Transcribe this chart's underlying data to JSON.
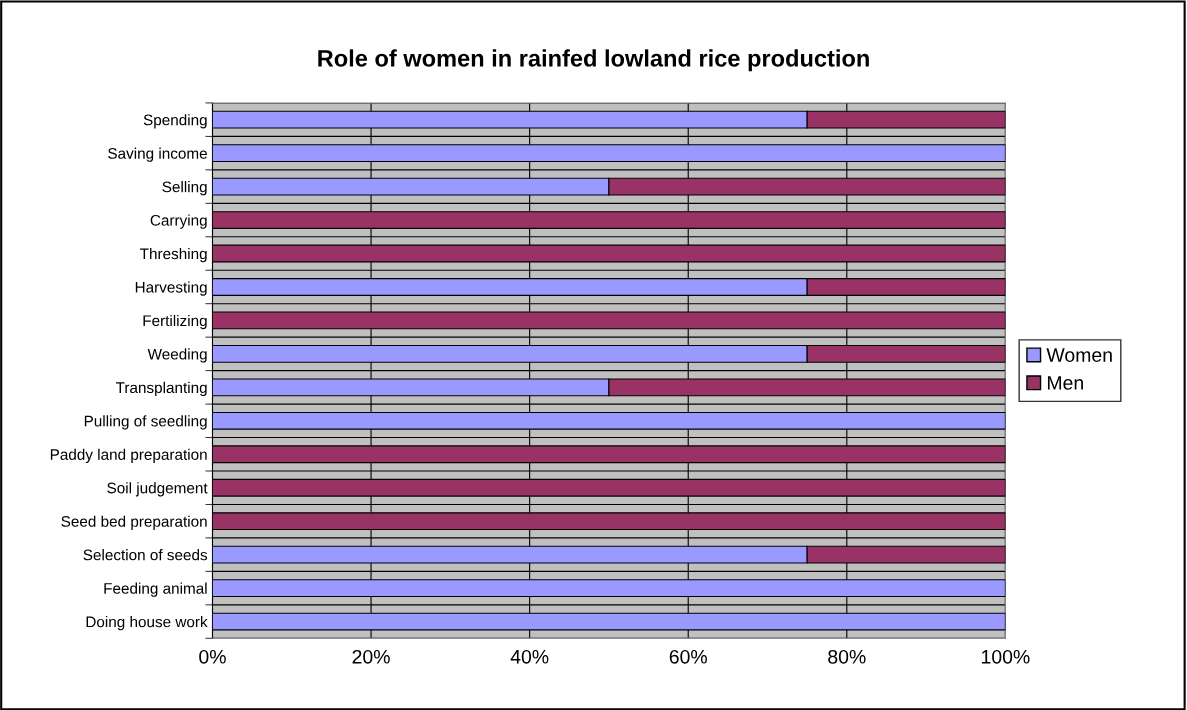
{
  "chart_data": {
    "type": "bar",
    "orientation": "horizontal",
    "stacked": true,
    "title": "Role of women in rainfed lowland rice production",
    "categories": [
      "Spending",
      "Saving income",
      "Selling",
      "Carrying",
      "Threshing",
      "Harvesting",
      "Fertilizing",
      "Weeding",
      "Transplanting",
      "Pulling of seedling",
      "Paddy land preparation",
      "Soil judgement",
      "Seed bed preparation",
      "Selection of seeds",
      "Feeding animal",
      "Doing house work"
    ],
    "series": [
      {
        "name": "Women",
        "color": "#9999ff",
        "values": [
          75,
          100,
          50,
          0,
          0,
          75,
          0,
          75,
          50,
          100,
          0,
          0,
          0,
          75,
          100,
          100
        ]
      },
      {
        "name": "Men",
        "color": "#993366",
        "values": [
          25,
          0,
          50,
          100,
          100,
          25,
          100,
          25,
          50,
          0,
          100,
          100,
          100,
          25,
          0,
          0
        ]
      }
    ],
    "xlim": [
      0,
      100
    ],
    "xticks": [
      {
        "value": 0,
        "label": "0%"
      },
      {
        "value": 20,
        "label": "20%"
      },
      {
        "value": 40,
        "label": "40%"
      },
      {
        "value": 60,
        "label": "60%"
      },
      {
        "value": 80,
        "label": "80%"
      },
      {
        "value": 100,
        "label": "100%"
      }
    ],
    "grid": true,
    "legend": "right"
  }
}
